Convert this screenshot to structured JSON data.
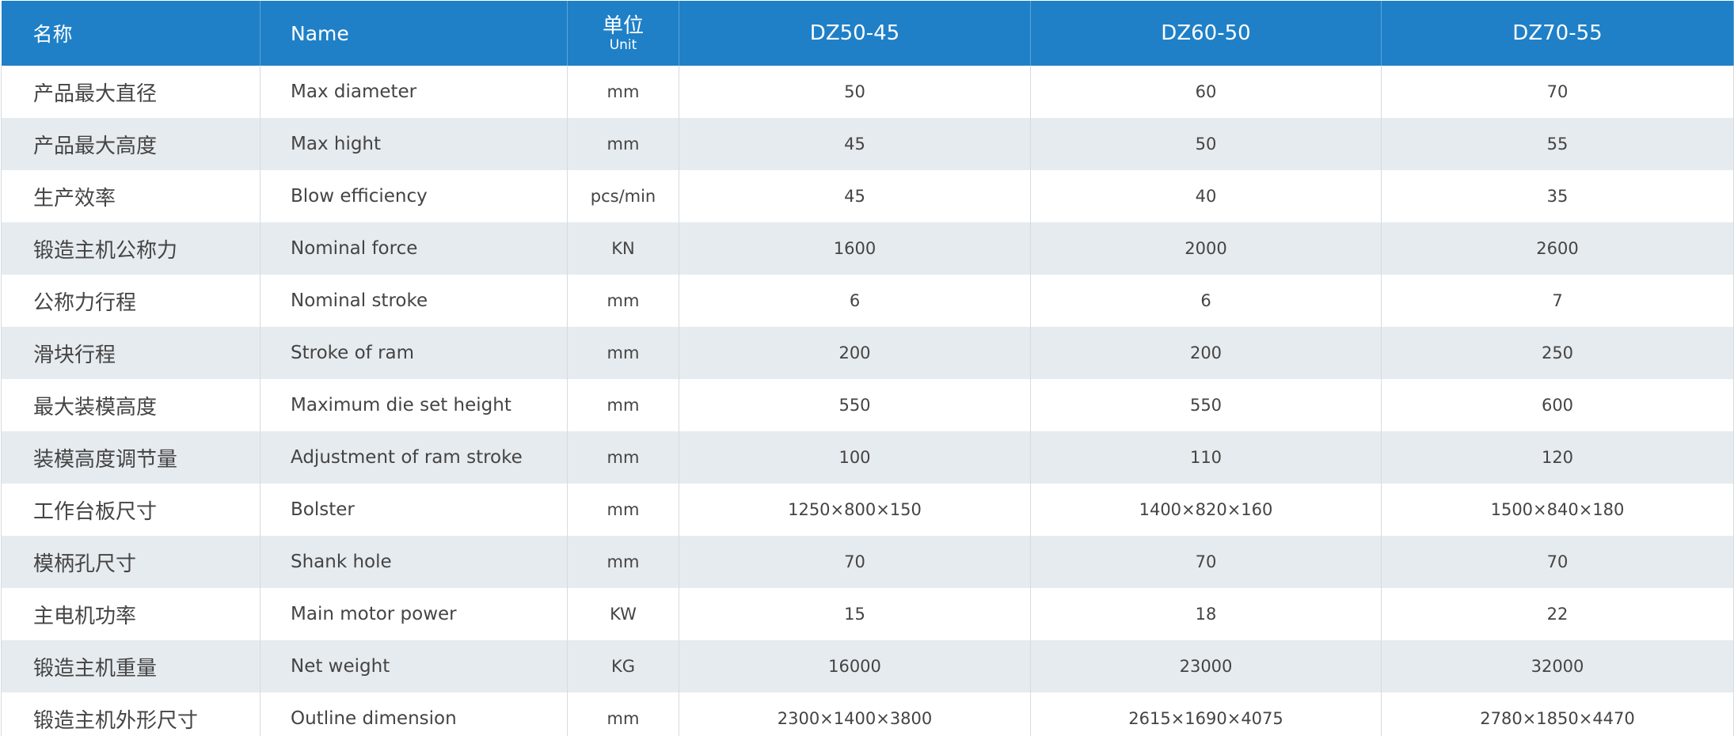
{
  "table": {
    "header": [
      "名称",
      "Name",
      {
        "main": "单位",
        "sub": "Unit"
      },
      "DZ50-45",
      "DZ60-50",
      "DZ70-55"
    ],
    "rows": [
      [
        "产品最大直径",
        "Max diameter",
        "mm",
        "50",
        "60",
        "70"
      ],
      [
        "产品最大高度",
        "Max hight",
        "mm",
        "45",
        "50",
        "55"
      ],
      [
        "生产效率",
        "Blow efficiency",
        "pcs/min",
        "45",
        "40",
        "35"
      ],
      [
        "锻造主机公称力",
        "Nominal force",
        "KN",
        "1600",
        "2000",
        "2600"
      ],
      [
        "公称力行程",
        "Nominal stroke",
        "mm",
        "6",
        "6",
        "7"
      ],
      [
        "滑块行程",
        "Stroke of ram",
        "mm",
        "200",
        "200",
        "250"
      ],
      [
        "最大装模高度",
        "Maximum die set height",
        "mm",
        "550",
        "550",
        "600"
      ],
      [
        "装模高度调节量",
        "Adjustment of ram stroke",
        "mm",
        "100",
        "110",
        "120"
      ],
      [
        "工作台板尺寸",
        "Bolster",
        "mm",
        "1250×800×150",
        "1400×820×160",
        "1500×840×180"
      ],
      [
        "模柄孔尺寸",
        "Shank hole",
        "mm",
        "70",
        "70",
        "70"
      ],
      [
        "主电机功率",
        "Main motor power",
        "KW",
        "15",
        "18",
        "22"
      ],
      [
        "锻造主机重量",
        "Net weight",
        "KG",
        "16000",
        "23000",
        "32000"
      ],
      [
        "锻造主机外形尺寸",
        "Outline dimension",
        "mm",
        "2300×1400×3800",
        "2615×1690×4075",
        "2780×1850×4470"
      ]
    ]
  }
}
